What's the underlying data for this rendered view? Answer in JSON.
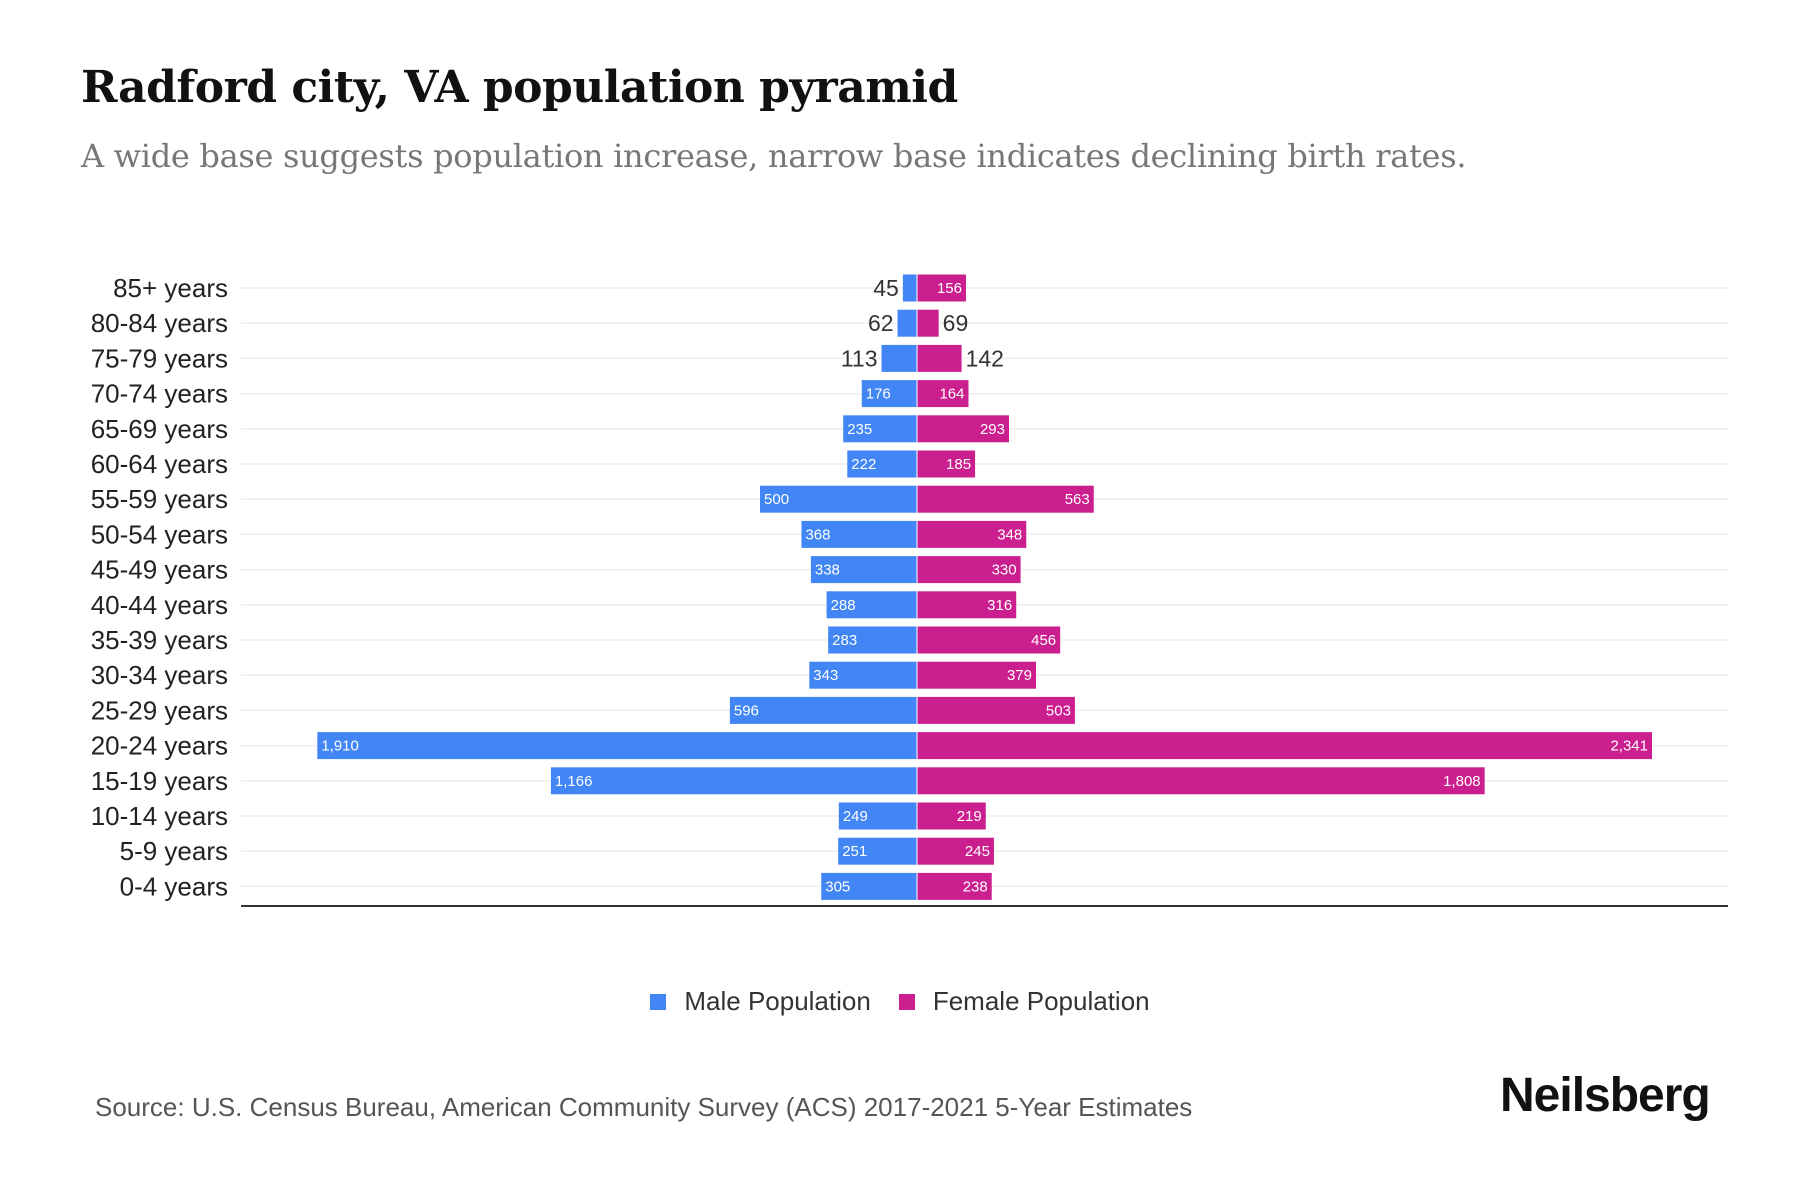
{
  "chart_data": {
    "type": "bar",
    "orientation": "horizontal-pyramid",
    "title": "Radford city, VA population pyramid",
    "subtitle": "A wide base suggests population increase, narrow base indicates declining birth rates.",
    "categories": [
      "85+ years",
      "80-84 years",
      "75-79 years",
      "70-74 years",
      "65-69 years",
      "60-64 years",
      "55-59 years",
      "50-54 years",
      "45-49 years",
      "40-44 years",
      "35-39 years",
      "30-34 years",
      "25-29 years",
      "20-24 years",
      "15-19 years",
      "10-14 years",
      "5-9 years",
      "0-4 years"
    ],
    "series": [
      {
        "name": "Male Population",
        "color": "#4285f4",
        "values": [
          45,
          62,
          113,
          176,
          235,
          222,
          500,
          368,
          338,
          288,
          283,
          343,
          596,
          1910,
          1166,
          249,
          251,
          305
        ]
      },
      {
        "name": "Female Population",
        "color": "#cc1f8f",
        "values": [
          156,
          69,
          142,
          164,
          293,
          185,
          563,
          348,
          330,
          316,
          456,
          379,
          503,
          2341,
          1808,
          219,
          245,
          238
        ]
      }
    ],
    "xlim": [
      -2341,
      2341
    ],
    "grid": true,
    "legend": "bottom-center"
  },
  "footer": {
    "source": "Source: U.S. Census Bureau, American Community Survey (ACS) 2017-2021 5-Year Estimates",
    "brand": "Neilsberg"
  }
}
